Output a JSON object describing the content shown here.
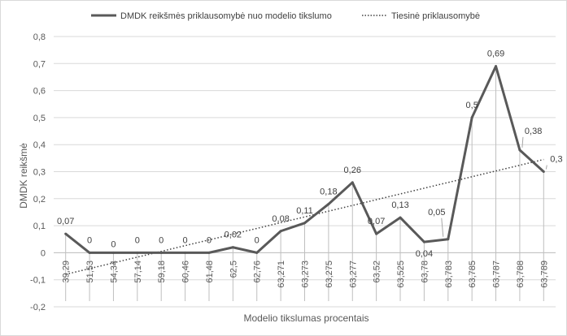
{
  "chart_data": {
    "type": "line",
    "title": "",
    "xlabel": "Modelio tikslumas procentais",
    "ylabel": "DMDK reikšmė",
    "ylim": [
      -0.2,
      0.8
    ],
    "yticks": [
      "-0,2",
      "-0,1",
      "0",
      "0,1",
      "0,2",
      "0,3",
      "0,4",
      "0,5",
      "0,6",
      "0,7",
      "0,8"
    ],
    "grid": true,
    "legend_position": "top",
    "categories": [
      "39,29",
      "51,53",
      "54,34",
      "57,14",
      "59,18",
      "60,46",
      "61,48",
      "62,5",
      "62,76",
      "63,271",
      "63,273",
      "63,275",
      "63,277",
      "63,52",
      "63,525",
      "63,78",
      "63,783",
      "63,785",
      "63,787",
      "63,788",
      "63,789"
    ],
    "series": [
      {
        "name": "DMDK reikšmės priklausomybė nuo modelio tikslumo",
        "values": [
          0.07,
          0,
          0,
          0,
          0,
          0,
          0,
          0.02,
          0,
          0.08,
          0.11,
          0.18,
          0.26,
          0.07,
          0.13,
          0.04,
          0.05,
          0.5,
          0.69,
          0.38,
          0.3
        ],
        "labels": [
          "0,07",
          "0",
          "0",
          "0",
          "0",
          "0",
          "0",
          "0,02",
          "0",
          "0,08",
          "0,11",
          "0,18",
          "0,26",
          "0,07",
          "0,13",
          "0,04",
          "0,05",
          "0,5",
          "0,69",
          "0,38",
          "0,3"
        ],
        "color": "#595959"
      },
      {
        "name": "Tiesinė priklausomybė",
        "type": "trendline",
        "start": -0.08,
        "end": 0.345,
        "color": "#404040"
      }
    ]
  }
}
